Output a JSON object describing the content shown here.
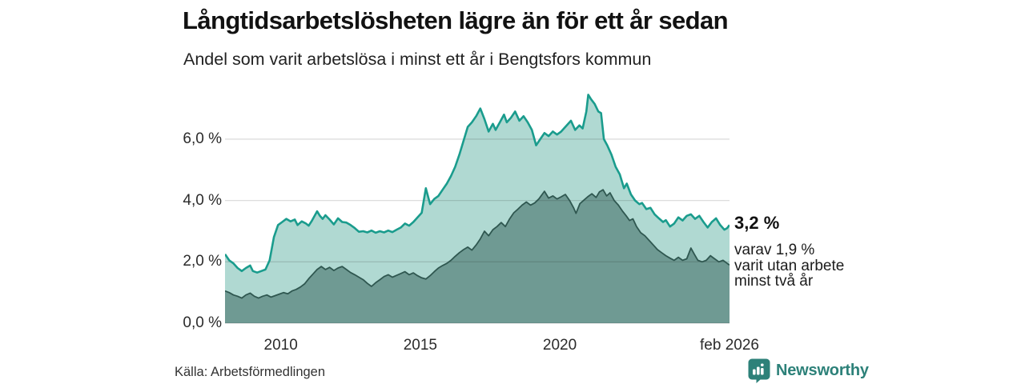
{
  "header": {
    "title": "Långtidsarbetslösheten lägre än för ett år sedan",
    "subtitle": "Andel som varit arbetslösa i minst ett år i Bengtsfors kommun"
  },
  "footer": {
    "source": "Källa: Arbetsförmedlingen",
    "brand": "Newsworthy"
  },
  "colors": {
    "series1_line": "#1a9c8d",
    "series1_fill": "#b0d9d2",
    "series2_line": "#2f5750",
    "series2_fill": "#6f9a93",
    "grid": "rgba(30,30,30,0.15)",
    "brand_teal": "#2d8179"
  },
  "chart_data": {
    "type": "area",
    "title": "Långtidsarbetslösheten lägre än för ett år sedan",
    "subtitle": "Andel som varit arbetslösa i minst ett år i Bengtsfors kommun",
    "unit": "%",
    "grid": "horizontal",
    "x_axis": {
      "range": [
        2008.0,
        2026.083
      ],
      "ticks": [
        {
          "x": 2010,
          "label": "2010"
        },
        {
          "x": 2015,
          "label": "2015"
        },
        {
          "x": 2020,
          "label": "2020"
        },
        {
          "x": 2026.083,
          "label": "feb 2026"
        }
      ]
    },
    "y_axis": {
      "display_max": 7.72,
      "ticks": [
        {
          "value": 6,
          "label": "6,0 %"
        },
        {
          "value": 4,
          "label": "4,0 %"
        },
        {
          "value": 2,
          "label": "2,0 %"
        },
        {
          "value": 0,
          "label": "0,0 %"
        }
      ]
    },
    "annotations": {
      "latest_value_label": "3,2 %",
      "latest_value": 3.2,
      "secondary_lines": [
        "varav 1,9 %",
        "varit utan arbete",
        "minst två år"
      ],
      "secondary_value": 1.9
    },
    "series": [
      {
        "name": "Arbetslösa minst ett år",
        "points": [
          [
            2008.0,
            2.25
          ],
          [
            2008.15,
            2.05
          ],
          [
            2008.3,
            1.95
          ],
          [
            2008.45,
            1.8
          ],
          [
            2008.6,
            1.7
          ],
          [
            2008.75,
            1.8
          ],
          [
            2008.9,
            1.88
          ],
          [
            2009.0,
            1.7
          ],
          [
            2009.15,
            1.65
          ],
          [
            2009.3,
            1.7
          ],
          [
            2009.45,
            1.75
          ],
          [
            2009.6,
            2.05
          ],
          [
            2009.75,
            2.8
          ],
          [
            2009.9,
            3.2
          ],
          [
            2010.05,
            3.3
          ],
          [
            2010.2,
            3.4
          ],
          [
            2010.35,
            3.32
          ],
          [
            2010.5,
            3.38
          ],
          [
            2010.6,
            3.2
          ],
          [
            2010.75,
            3.32
          ],
          [
            2010.9,
            3.25
          ],
          [
            2011.0,
            3.18
          ],
          [
            2011.1,
            3.32
          ],
          [
            2011.3,
            3.65
          ],
          [
            2011.4,
            3.5
          ],
          [
            2011.5,
            3.4
          ],
          [
            2011.6,
            3.52
          ],
          [
            2011.75,
            3.38
          ],
          [
            2011.9,
            3.22
          ],
          [
            2012.05,
            3.42
          ],
          [
            2012.2,
            3.3
          ],
          [
            2012.35,
            3.28
          ],
          [
            2012.5,
            3.2
          ],
          [
            2012.65,
            3.1
          ],
          [
            2012.8,
            2.98
          ],
          [
            2012.95,
            3.0
          ],
          [
            2013.1,
            2.96
          ],
          [
            2013.25,
            3.02
          ],
          [
            2013.4,
            2.95
          ],
          [
            2013.55,
            3.0
          ],
          [
            2013.7,
            2.96
          ],
          [
            2013.85,
            3.02
          ],
          [
            2014.0,
            2.97
          ],
          [
            2014.15,
            3.05
          ],
          [
            2014.3,
            3.12
          ],
          [
            2014.45,
            3.25
          ],
          [
            2014.6,
            3.18
          ],
          [
            2014.75,
            3.3
          ],
          [
            2014.9,
            3.45
          ],
          [
            2015.05,
            3.6
          ],
          [
            2015.2,
            4.4
          ],
          [
            2015.35,
            3.88
          ],
          [
            2015.5,
            4.05
          ],
          [
            2015.65,
            4.15
          ],
          [
            2015.8,
            4.35
          ],
          [
            2015.95,
            4.55
          ],
          [
            2016.1,
            4.8
          ],
          [
            2016.25,
            5.1
          ],
          [
            2016.4,
            5.5
          ],
          [
            2016.55,
            5.95
          ],
          [
            2016.7,
            6.4
          ],
          [
            2016.85,
            6.55
          ],
          [
            2017.0,
            6.75
          ],
          [
            2017.15,
            7.0
          ],
          [
            2017.3,
            6.65
          ],
          [
            2017.45,
            6.25
          ],
          [
            2017.6,
            6.5
          ],
          [
            2017.7,
            6.3
          ],
          [
            2017.85,
            6.55
          ],
          [
            2018.0,
            6.8
          ],
          [
            2018.1,
            6.55
          ],
          [
            2018.25,
            6.7
          ],
          [
            2018.4,
            6.9
          ],
          [
            2018.55,
            6.6
          ],
          [
            2018.7,
            6.75
          ],
          [
            2018.85,
            6.55
          ],
          [
            2019.0,
            6.3
          ],
          [
            2019.15,
            5.8
          ],
          [
            2019.3,
            6.0
          ],
          [
            2019.45,
            6.2
          ],
          [
            2019.6,
            6.1
          ],
          [
            2019.75,
            6.25
          ],
          [
            2019.9,
            6.15
          ],
          [
            2020.05,
            6.25
          ],
          [
            2020.2,
            6.4
          ],
          [
            2020.4,
            6.6
          ],
          [
            2020.55,
            6.3
          ],
          [
            2020.7,
            6.45
          ],
          [
            2020.82,
            6.35
          ],
          [
            2020.95,
            6.9
          ],
          [
            2021.02,
            7.45
          ],
          [
            2021.12,
            7.3
          ],
          [
            2021.25,
            7.15
          ],
          [
            2021.38,
            6.9
          ],
          [
            2021.48,
            6.85
          ],
          [
            2021.58,
            6.0
          ],
          [
            2021.7,
            5.8
          ],
          [
            2021.85,
            5.5
          ],
          [
            2022.0,
            5.1
          ],
          [
            2022.15,
            4.85
          ],
          [
            2022.3,
            4.4
          ],
          [
            2022.4,
            4.55
          ],
          [
            2022.55,
            4.2
          ],
          [
            2022.7,
            4.0
          ],
          [
            2022.85,
            3.88
          ],
          [
            2022.95,
            3.92
          ],
          [
            2023.1,
            3.72
          ],
          [
            2023.25,
            3.76
          ],
          [
            2023.4,
            3.55
          ],
          [
            2023.55,
            3.42
          ],
          [
            2023.7,
            3.3
          ],
          [
            2023.8,
            3.36
          ],
          [
            2023.95,
            3.15
          ],
          [
            2024.1,
            3.25
          ],
          [
            2024.25,
            3.45
          ],
          [
            2024.4,
            3.35
          ],
          [
            2024.55,
            3.5
          ],
          [
            2024.7,
            3.55
          ],
          [
            2024.85,
            3.4
          ],
          [
            2025.0,
            3.5
          ],
          [
            2025.15,
            3.3
          ],
          [
            2025.3,
            3.12
          ],
          [
            2025.45,
            3.3
          ],
          [
            2025.6,
            3.42
          ],
          [
            2025.75,
            3.2
          ],
          [
            2025.9,
            3.05
          ],
          [
            2026.0,
            3.1
          ],
          [
            2026.083,
            3.2
          ]
        ]
      },
      {
        "name": "Arbetslösa minst två år",
        "points": [
          [
            2008.0,
            1.05
          ],
          [
            2008.15,
            1.0
          ],
          [
            2008.3,
            0.92
          ],
          [
            2008.45,
            0.88
          ],
          [
            2008.6,
            0.82
          ],
          [
            2008.75,
            0.92
          ],
          [
            2008.9,
            0.98
          ],
          [
            2009.05,
            0.88
          ],
          [
            2009.2,
            0.82
          ],
          [
            2009.35,
            0.88
          ],
          [
            2009.5,
            0.92
          ],
          [
            2009.65,
            0.85
          ],
          [
            2009.8,
            0.9
          ],
          [
            2009.95,
            0.95
          ],
          [
            2010.1,
            1.0
          ],
          [
            2010.25,
            0.96
          ],
          [
            2010.4,
            1.05
          ],
          [
            2010.55,
            1.1
          ],
          [
            2010.7,
            1.18
          ],
          [
            2010.85,
            1.28
          ],
          [
            2011.0,
            1.45
          ],
          [
            2011.15,
            1.6
          ],
          [
            2011.3,
            1.75
          ],
          [
            2011.45,
            1.85
          ],
          [
            2011.6,
            1.75
          ],
          [
            2011.75,
            1.82
          ],
          [
            2011.9,
            1.72
          ],
          [
            2012.05,
            1.8
          ],
          [
            2012.2,
            1.85
          ],
          [
            2012.35,
            1.75
          ],
          [
            2012.5,
            1.65
          ],
          [
            2012.65,
            1.58
          ],
          [
            2012.8,
            1.5
          ],
          [
            2012.95,
            1.42
          ],
          [
            2013.1,
            1.3
          ],
          [
            2013.25,
            1.2
          ],
          [
            2013.4,
            1.32
          ],
          [
            2013.55,
            1.42
          ],
          [
            2013.7,
            1.52
          ],
          [
            2013.85,
            1.58
          ],
          [
            2014.0,
            1.5
          ],
          [
            2014.15,
            1.56
          ],
          [
            2014.3,
            1.62
          ],
          [
            2014.45,
            1.68
          ],
          [
            2014.6,
            1.58
          ],
          [
            2014.75,
            1.64
          ],
          [
            2014.9,
            1.55
          ],
          [
            2015.05,
            1.48
          ],
          [
            2015.2,
            1.44
          ],
          [
            2015.35,
            1.55
          ],
          [
            2015.5,
            1.68
          ],
          [
            2015.65,
            1.8
          ],
          [
            2015.8,
            1.88
          ],
          [
            2015.95,
            1.95
          ],
          [
            2016.1,
            2.05
          ],
          [
            2016.25,
            2.18
          ],
          [
            2016.4,
            2.3
          ],
          [
            2016.55,
            2.4
          ],
          [
            2016.7,
            2.48
          ],
          [
            2016.85,
            2.38
          ],
          [
            2017.0,
            2.55
          ],
          [
            2017.15,
            2.75
          ],
          [
            2017.3,
            3.0
          ],
          [
            2017.45,
            2.85
          ],
          [
            2017.6,
            3.05
          ],
          [
            2017.75,
            3.15
          ],
          [
            2017.9,
            3.28
          ],
          [
            2018.05,
            3.15
          ],
          [
            2018.2,
            3.4
          ],
          [
            2018.35,
            3.6
          ],
          [
            2018.5,
            3.72
          ],
          [
            2018.65,
            3.85
          ],
          [
            2018.8,
            3.95
          ],
          [
            2018.95,
            3.85
          ],
          [
            2019.1,
            3.92
          ],
          [
            2019.25,
            4.05
          ],
          [
            2019.45,
            4.3
          ],
          [
            2019.6,
            4.08
          ],
          [
            2019.75,
            4.15
          ],
          [
            2019.9,
            4.05
          ],
          [
            2020.05,
            4.12
          ],
          [
            2020.2,
            4.2
          ],
          [
            2020.35,
            4.0
          ],
          [
            2020.5,
            3.75
          ],
          [
            2020.58,
            3.58
          ],
          [
            2020.72,
            3.9
          ],
          [
            2020.85,
            4.0
          ],
          [
            2021.0,
            4.12
          ],
          [
            2021.15,
            4.22
          ],
          [
            2021.3,
            4.1
          ],
          [
            2021.42,
            4.28
          ],
          [
            2021.55,
            4.35
          ],
          [
            2021.68,
            4.15
          ],
          [
            2021.8,
            4.25
          ],
          [
            2021.95,
            4.0
          ],
          [
            2022.1,
            3.85
          ],
          [
            2022.25,
            3.65
          ],
          [
            2022.38,
            3.5
          ],
          [
            2022.5,
            3.35
          ],
          [
            2022.62,
            3.4
          ],
          [
            2022.75,
            3.15
          ],
          [
            2022.9,
            2.95
          ],
          [
            2023.05,
            2.85
          ],
          [
            2023.2,
            2.7
          ],
          [
            2023.35,
            2.55
          ],
          [
            2023.5,
            2.4
          ],
          [
            2023.65,
            2.3
          ],
          [
            2023.8,
            2.2
          ],
          [
            2023.95,
            2.12
          ],
          [
            2024.1,
            2.05
          ],
          [
            2024.25,
            2.15
          ],
          [
            2024.4,
            2.05
          ],
          [
            2024.55,
            2.1
          ],
          [
            2024.7,
            2.45
          ],
          [
            2024.82,
            2.25
          ],
          [
            2024.95,
            2.05
          ],
          [
            2025.1,
            2.0
          ],
          [
            2025.25,
            2.05
          ],
          [
            2025.4,
            2.2
          ],
          [
            2025.55,
            2.1
          ],
          [
            2025.7,
            2.0
          ],
          [
            2025.85,
            2.05
          ],
          [
            2026.0,
            1.95
          ],
          [
            2026.083,
            1.9
          ]
        ]
      }
    ]
  }
}
